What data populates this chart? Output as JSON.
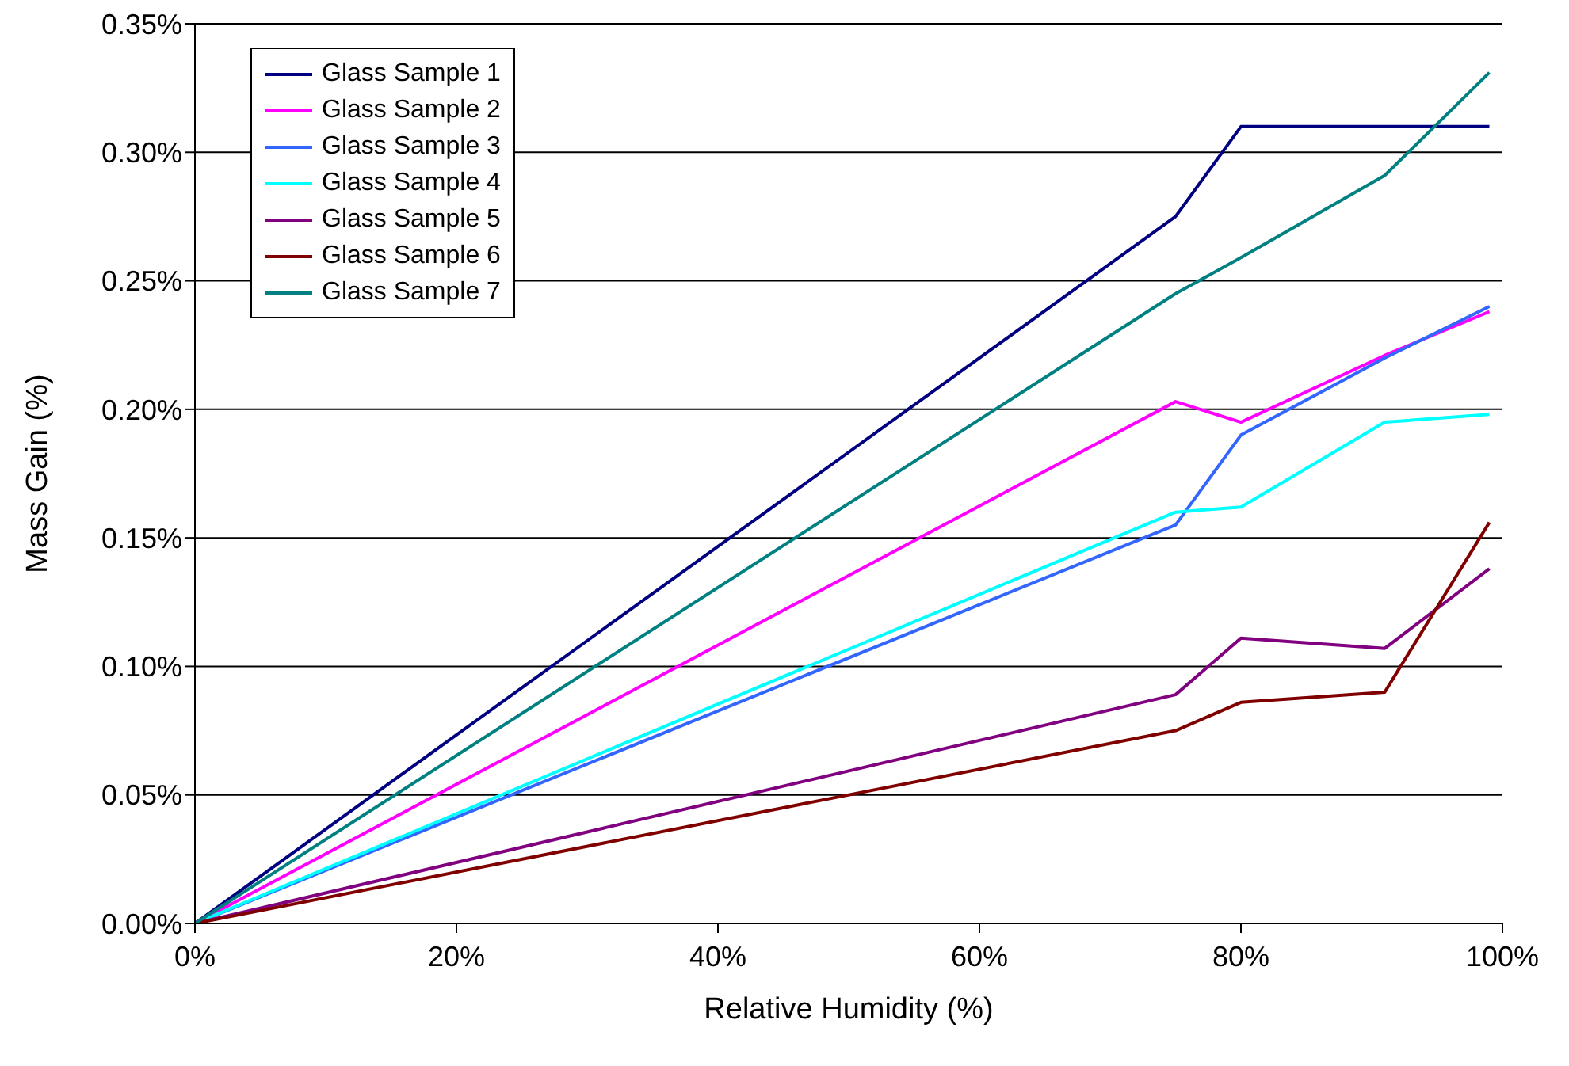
{
  "chart_data": {
    "type": "line",
    "xlabel": "Relative Humidity (%)",
    "ylabel": "Mass Gain (%)",
    "x": [
      0,
      75,
      80,
      91,
      99
    ],
    "series": [
      {
        "name": "Glass Sample 1",
        "color": "#000080",
        "values": [
          0,
          0.275,
          0.31,
          0.31,
          0.31
        ]
      },
      {
        "name": "Glass Sample 2",
        "color": "#ff00ff",
        "values": [
          0,
          0.203,
          0.195,
          0.221,
          0.238
        ]
      },
      {
        "name": "Glass Sample 3",
        "color": "#3366ff",
        "values": [
          0,
          0.155,
          0.19,
          0.22,
          0.24
        ]
      },
      {
        "name": "Glass Sample 4",
        "color": "#00ffff",
        "values": [
          0,
          0.16,
          0.162,
          0.195,
          0.198
        ]
      },
      {
        "name": "Glass Sample 5",
        "color": "#800080",
        "values": [
          0,
          0.089,
          0.111,
          0.107,
          0.138
        ]
      },
      {
        "name": "Glass Sample 6",
        "color": "#800000",
        "values": [
          0,
          0.075,
          0.086,
          0.09,
          0.156
        ]
      },
      {
        "name": "Glass Sample 7",
        "color": "#008080",
        "values": [
          0,
          0.245,
          0.259,
          0.291,
          0.331
        ]
      }
    ],
    "xlim": [
      0,
      100
    ],
    "xticks": [
      {
        "value": 0,
        "label": "0%"
      },
      {
        "value": 20,
        "label": "20%"
      },
      {
        "value": 40,
        "label": "40%"
      },
      {
        "value": 60,
        "label": "60%"
      },
      {
        "value": 80,
        "label": "80%"
      },
      {
        "value": 100,
        "label": "100%"
      }
    ],
    "ylim": [
      0,
      0.35
    ],
    "yticks": [
      {
        "value": 0,
        "label": "0.00%"
      },
      {
        "value": 0.05,
        "label": "0.05%"
      },
      {
        "value": 0.1,
        "label": "0.10%"
      },
      {
        "value": 0.15,
        "label": "0.15%"
      },
      {
        "value": 0.2,
        "label": "0.20%"
      },
      {
        "value": 0.25,
        "label": "0.25%"
      },
      {
        "value": 0.3,
        "label": "0.30%"
      },
      {
        "value": 0.35,
        "label": "0.35%"
      }
    ],
    "grid": "y",
    "legend": "top left",
    "marker": "none",
    "line_style": "solid"
  }
}
